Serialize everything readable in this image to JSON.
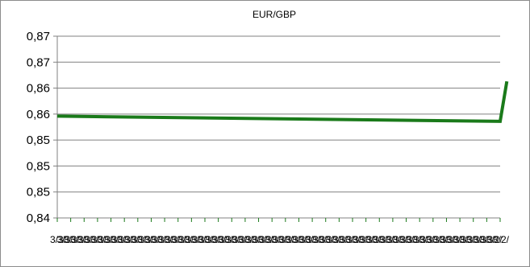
{
  "chart_data": {
    "type": "line",
    "title": "EUR/GBP",
    "xlabel": "",
    "ylabel": "",
    "y_ticks": [
      "0,84",
      "0,85",
      "0,85",
      "0,85",
      "0,86",
      "0,86",
      "0,87",
      "0,87"
    ],
    "x_ticks": [
      "3/3/",
      "3/3/",
      "3/3/",
      "3/3/",
      "3/3/",
      "3/3/",
      "3/3/",
      "3/3/",
      "3/3/",
      "3/3/",
      "3/3/",
      "3/3/",
      "3/3/",
      "3/3/",
      "3/3/",
      "3/3/",
      "3/3/",
      "3/3/",
      "3/3/",
      "3/3/",
      "3/3/",
      "3/3/",
      "3/3/",
      "3/3/",
      "3/3/",
      "3/3/",
      "3/3/",
      "3/3/",
      "3/3/",
      "3/3/",
      "3/3/",
      "3/3/",
      "3/3/",
      "3/3/",
      "3/3/",
      "3/3/",
      "3/3/",
      "3/3/",
      "3/3/",
      "3/3/",
      "3/3/",
      "3/3/",
      "3/3/",
      "3/3/",
      "3/3/",
      "3/3/",
      "3/3/",
      "3/3/",
      "3/3/",
      "3/3/",
      "3/3/",
      "3/3/",
      "3/3/",
      "3/3/",
      "3/3/",
      "3/3/",
      "3/3/",
      "3/3/",
      "3/3/",
      "3/3/",
      "3/3/",
      "3/3/",
      "3/3/",
      "3/3/",
      "3/3/",
      "3/2/",
      "3/2/"
    ],
    "ylim": [
      0.84,
      0.875
    ],
    "grid": true,
    "legend": "none",
    "series": [
      {
        "color": "#1a7a1a",
        "x": [
          0,
          66,
          67
        ],
        "values": [
          0.8596,
          0.8586,
          0.8663
        ]
      }
    ]
  }
}
